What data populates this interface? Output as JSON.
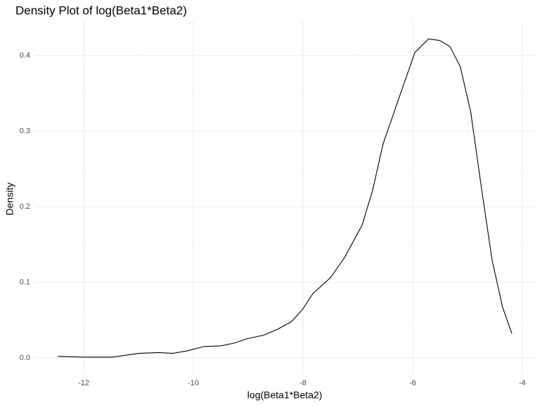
{
  "chart_data": {
    "type": "line",
    "title": "Density Plot of log(Beta1*Beta2)",
    "x_label": "log(Beta1*Beta2)",
    "y_label": "Density",
    "x": [
      -12.47,
      -12.0,
      -11.47,
      -11.0,
      -10.64,
      -10.38,
      -10.13,
      -9.81,
      -9.49,
      -9.23,
      -9.04,
      -8.72,
      -8.46,
      -8.21,
      -8.01,
      -7.82,
      -7.5,
      -7.24,
      -6.92,
      -6.73,
      -6.54,
      -6.22,
      -5.96,
      -5.71,
      -5.51,
      -5.32,
      -5.13,
      -4.94,
      -4.74,
      -4.55,
      -4.36,
      -4.19
    ],
    "series": [
      {
        "color": "#000000",
        "values": [
          0.002,
          0.001,
          0.001,
          0.006,
          0.007,
          0.006,
          0.009,
          0.015,
          0.016,
          0.02,
          0.025,
          0.03,
          0.038,
          0.048,
          0.064,
          0.085,
          0.106,
          0.133,
          0.176,
          0.222,
          0.283,
          0.35,
          0.404,
          0.422,
          0.42,
          0.412,
          0.385,
          0.325,
          0.222,
          0.129,
          0.067,
          0.032
        ]
      }
    ],
    "xlim": [
      -12.885,
      -3.78
    ],
    "ylim": [
      -0.0214,
      0.4456
    ],
    "xticks": [
      -12,
      -10,
      -8,
      -6,
      -4
    ],
    "yticks": [
      {
        "value": 0,
        "label": "0.0"
      },
      0.1,
      0.2,
      0.3,
      0.4
    ],
    "xticks_minor": [
      -11,
      -9,
      -7,
      -5
    ],
    "yticks_minor": [
      0.05,
      0.15,
      0.25,
      0.35
    ],
    "grid": true
  }
}
